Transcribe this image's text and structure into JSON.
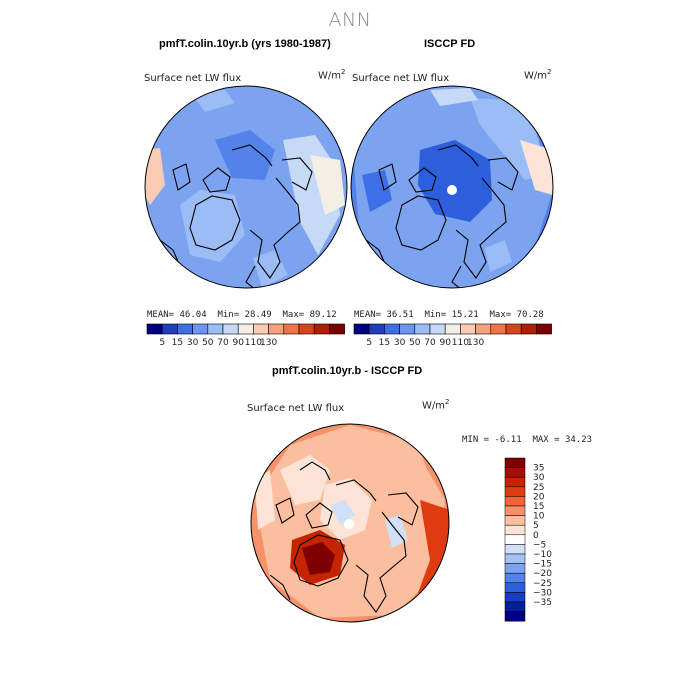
{
  "figure": {
    "title": "ANN",
    "flux_label": "Surface net LW flux",
    "units": "W/m",
    "units_exp": "2"
  },
  "panels": [
    {
      "title": "pmfT.colin.10yr.b (yrs 1980-1987)",
      "stats": {
        "mean_label": "MEAN=",
        "mean": "46.04",
        "min_label": "Min=",
        "min": "28.49",
        "max_label": "Max=",
        "max": "89.12"
      }
    },
    {
      "title": "ISCCP FD",
      "stats": {
        "mean_label": "MEAN=",
        "mean": "36.51",
        "min_label": "Min=",
        "min": "15.21",
        "max_label": "Max=",
        "max": "70.28"
      }
    },
    {
      "title": "pmfT.colin.10yr.b - ISCCP FD",
      "stats": {
        "min_label": "MIN =",
        "min": "-6.11",
        "max_label": "MAX =",
        "max": "34.23"
      }
    }
  ],
  "colorbar_main": {
    "colors": [
      "#00007f",
      "#1f3fb8",
      "#3f6fe6",
      "#6b95f0",
      "#9bbcf5",
      "#c6daf7",
      "#f3efe4",
      "#fbcbb3",
      "#f5a07c",
      "#ef7448",
      "#d9431c",
      "#b31d05",
      "#7f0000"
    ],
    "labels": [
      "5",
      "15",
      "30",
      "50",
      "70",
      "90",
      "110",
      "130"
    ]
  },
  "colorbar_diff": {
    "colors": [
      "#7f0000",
      "#a60f00",
      "#c62400",
      "#e03a10",
      "#f06536",
      "#f7916a",
      "#fbbfa0",
      "#fde4d6",
      "#ffffff",
      "#cfe0f7",
      "#a4c2f4",
      "#7ba3f0",
      "#5282ea",
      "#2d5fdc",
      "#153ec0",
      "#051f9a",
      "#00007f"
    ],
    "labels": [
      "35",
      "30",
      "25",
      "20",
      "15",
      "10",
      "5",
      "0",
      "−5",
      "−10",
      "−15",
      "−20",
      "−25",
      "−30",
      "−35"
    ]
  }
}
